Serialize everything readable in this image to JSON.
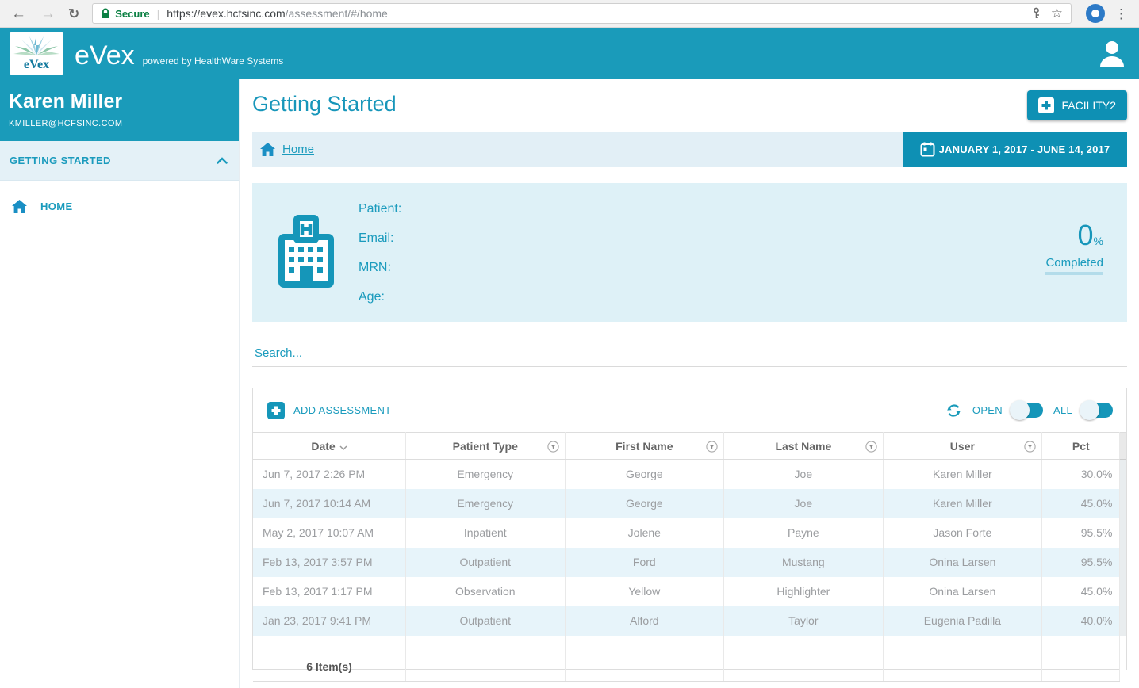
{
  "browser": {
    "back_glyph": "←",
    "forward_glyph": "→",
    "reload_glyph": "↻",
    "secure_label": "Secure",
    "url_host": "https://evex.hcfsinc.com",
    "url_path": "/assessment/#/home",
    "star_glyph": "☆",
    "menu_glyph": "⋮"
  },
  "header": {
    "logo_text": "eVex",
    "app_name": "eVex",
    "tagline": "powered by HealthWare Systems"
  },
  "sidebar": {
    "user_name": "Karen Miller",
    "user_email": "KMILLER@HCFSINC.COM",
    "section_label": "GETTING STARTED",
    "items": [
      {
        "label": "HOME"
      }
    ]
  },
  "main": {
    "title": "Getting Started",
    "facility_button": "FACILITY2",
    "breadcrumb_home": "Home",
    "date_range": "JANUARY 1, 2017 - JUNE 14, 2017",
    "patient_card": {
      "labels": [
        "Patient:",
        "Email:",
        "MRN:",
        "Age:"
      ],
      "percent_value": "0",
      "percent_sign": "%",
      "completed_label": "Completed"
    },
    "search_placeholder": "Search...",
    "toolbar": {
      "add_button": "ADD ASSESSMENT",
      "open_label": "OPEN",
      "all_label": "ALL"
    },
    "table": {
      "columns": [
        "Date",
        "Patient Type",
        "First Name",
        "Last Name",
        "User",
        "Pct"
      ],
      "rows": [
        [
          "Jun 7, 2017 2:26 PM",
          "Emergency",
          "George",
          "Joe",
          "Karen Miller",
          "30.0%"
        ],
        [
          "Jun 7, 2017 10:14 AM",
          "Emergency",
          "George",
          "Joe",
          "Karen Miller",
          "45.0%"
        ],
        [
          "May 2, 2017 10:07 AM",
          "Inpatient",
          "Jolene",
          "Payne",
          "Jason Forte",
          "95.5%"
        ],
        [
          "Feb 13, 2017 3:57 PM",
          "Outpatient",
          "Ford",
          "Mustang",
          "Onina Larsen",
          "95.5%"
        ],
        [
          "Feb 13, 2017 1:17 PM",
          "Observation",
          "Yellow",
          "Highlighter",
          "Onina Larsen",
          "45.0%"
        ],
        [
          "Jan 23, 2017 9:41 PM",
          "Outpatient",
          "Alford",
          "Taylor",
          "Eugenia Padilla",
          "40.0%"
        ]
      ],
      "footer_count": "6 Item(s)"
    }
  },
  "colors": {
    "accent": "#1A9BBA",
    "accent_dark": "#0E90B4",
    "light_blue_bg": "#DEF1F7",
    "row_alt_bg": "#E7F4FA",
    "secure_green": "#0B8043"
  }
}
